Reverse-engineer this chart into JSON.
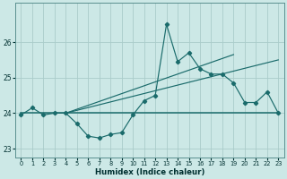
{
  "xlabel": "Humidex (Indice chaleur)",
  "xlim": [
    -0.5,
    23.5
  ],
  "ylim": [
    22.75,
    27.1
  ],
  "yticks": [
    23,
    24,
    25,
    26
  ],
  "xticks": [
    0,
    1,
    2,
    3,
    4,
    5,
    6,
    7,
    8,
    9,
    10,
    11,
    12,
    13,
    14,
    15,
    16,
    17,
    18,
    19,
    20,
    21,
    22,
    23
  ],
  "background_color": "#cce8e6",
  "grid_color": "#aaccca",
  "line_color": "#1a6b6b",
  "line1_x": [
    0,
    1,
    2,
    3,
    4,
    5,
    6,
    7,
    8,
    9,
    10,
    11,
    12,
    13,
    14,
    15,
    16,
    17,
    18,
    19,
    20,
    21,
    22,
    23
  ],
  "line1_y": [
    23.95,
    24.15,
    23.95,
    24.0,
    24.0,
    23.7,
    23.35,
    23.3,
    23.4,
    23.45,
    23.95,
    24.35,
    24.5,
    26.5,
    25.45,
    25.7,
    25.25,
    25.1,
    25.1,
    24.85,
    24.3,
    24.3,
    24.6,
    24.0
  ],
  "line2_x": [
    0,
    23
  ],
  "line2_y": [
    24.0,
    24.0
  ],
  "line3_x": [
    4,
    23
  ],
  "line3_y": [
    24.0,
    25.5
  ],
  "line4_x": [
    4,
    19
  ],
  "line4_y": [
    24.0,
    25.65
  ]
}
